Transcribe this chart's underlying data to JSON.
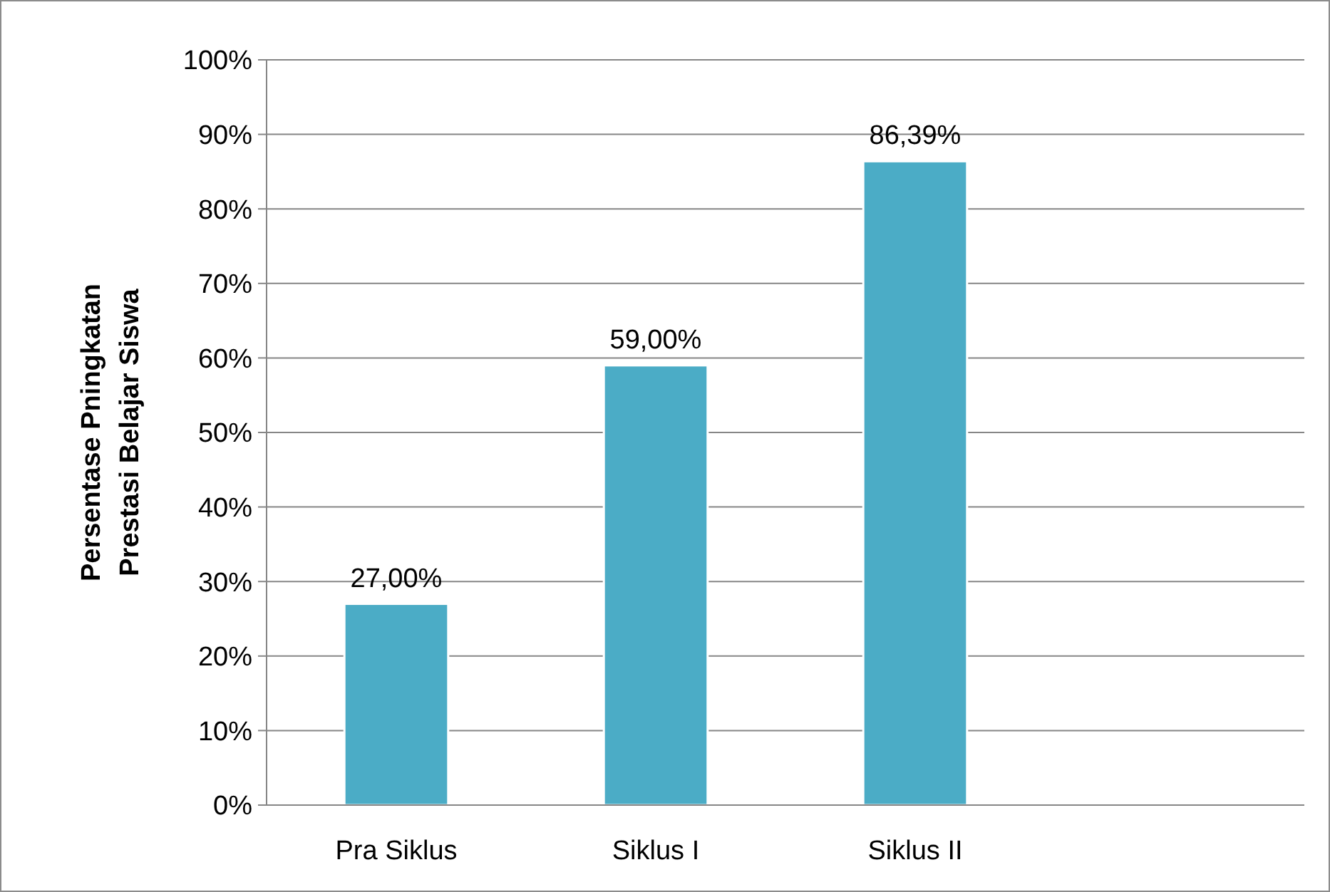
{
  "chart_data": {
    "type": "bar",
    "ylabel": "Persentase Pningkatan\nPrestasi  Belajar Siswa",
    "categories": [
      "Pra Siklus",
      "Siklus I",
      "Siklus II",
      null
    ],
    "values": [
      27,
      59,
      86.39,
      null
    ],
    "value_labels": [
      "27,00%",
      "59,00%",
      "86,39%",
      null
    ],
    "color": "#4bacc6",
    "ylim": [
      0,
      100
    ],
    "yticks": [
      {
        "value": 0,
        "label": "0%"
      },
      {
        "value": 10,
        "label": "10%"
      },
      {
        "value": 20,
        "label": "20%"
      },
      {
        "value": 30,
        "label": "30%"
      },
      {
        "value": 40,
        "label": "40%"
      },
      {
        "value": 50,
        "label": "50%"
      },
      {
        "value": 60,
        "label": "60%"
      },
      {
        "value": 70,
        "label": "70%"
      },
      {
        "value": 80,
        "label": "80%"
      },
      {
        "value": 90,
        "label": "90%"
      },
      {
        "value": 100,
        "label": "100%"
      }
    ],
    "grid": "y"
  }
}
